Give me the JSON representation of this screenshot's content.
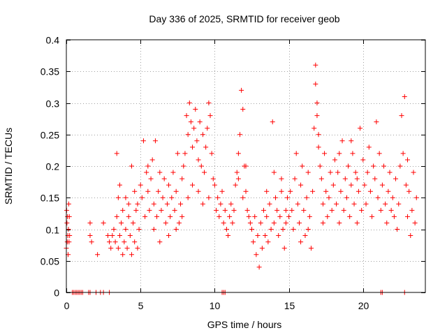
{
  "chart_data": {
    "type": "scatter",
    "title": "Day 336 of 2025, SRMTID for receiver geob",
    "xlabel": "GPS time / hours",
    "ylabel": "SRMTID / TECUs",
    "xlim": [
      0,
      24.2
    ],
    "ylim": [
      0,
      0.4
    ],
    "xticks": [
      0,
      5,
      10,
      15,
      20
    ],
    "xtick_labels": [
      "0",
      "5",
      "10",
      "15",
      "20"
    ],
    "yticks": [
      0,
      0.05,
      0.1,
      0.15,
      0.2,
      0.25,
      0.3,
      0.35,
      0.4
    ],
    "ytick_labels": [
      "0",
      "0.05",
      "0.1",
      "0.15",
      "0.2",
      "0.25",
      "0.3",
      "0.35",
      "0.4"
    ],
    "grid": true,
    "marker": "plus",
    "series": [
      {
        "name": "SRMTID",
        "color": "#ff0000",
        "points": [
          [
            0.0,
            0.07
          ],
          [
            0.02,
            0.13
          ],
          [
            0.04,
            0.11
          ],
          [
            0.06,
            0.08
          ],
          [
            0.08,
            0.12
          ],
          [
            0.1,
            0.09
          ],
          [
            0.12,
            0.06
          ],
          [
            0.14,
            0.1
          ],
          [
            0.16,
            0.14
          ],
          [
            0.18,
            0.08
          ],
          [
            0.2,
            0.12
          ],
          [
            0.22,
            0.09
          ],
          [
            0.4,
            0
          ],
          [
            0.5,
            0
          ],
          [
            0.6,
            0
          ],
          [
            0.7,
            0
          ],
          [
            0.8,
            0
          ],
          [
            0.9,
            0
          ],
          [
            1.0,
            0
          ],
          [
            1.1,
            0
          ],
          [
            1.5,
            0
          ],
          [
            1.6,
            0
          ],
          [
            2.0,
            0
          ],
          [
            2.3,
            0
          ],
          [
            2.5,
            0
          ],
          [
            2.9,
            0
          ],
          [
            1.6,
            0.09
          ],
          [
            1.6,
            0.11
          ],
          [
            1.7,
            0.08
          ],
          [
            2.1,
            0.06
          ],
          [
            2.5,
            0.11
          ],
          [
            2.8,
            0.09
          ],
          [
            2.9,
            0.08
          ],
          [
            3.0,
            0.07
          ],
          [
            3.1,
            0.09
          ],
          [
            3.2,
            0.1
          ],
          [
            3.3,
            0.08
          ],
          [
            3.4,
            0.12
          ],
          [
            3.5,
            0.07
          ],
          [
            3.6,
            0.09
          ],
          [
            3.7,
            0.11
          ],
          [
            3.8,
            0.06
          ],
          [
            3.9,
            0.08
          ],
          [
            4.0,
            0.1
          ],
          [
            4.1,
            0.07
          ],
          [
            4.2,
            0.12
          ],
          [
            4.3,
            0.09
          ],
          [
            4.4,
            0.06
          ],
          [
            4.5,
            0.11
          ],
          [
            4.6,
            0.08
          ],
          [
            4.7,
            0.13
          ],
          [
            4.8,
            0.07
          ],
          [
            4.9,
            0.1
          ],
          [
            3.4,
            0.22
          ],
          [
            3.5,
            0.15
          ],
          [
            3.6,
            0.17
          ],
          [
            3.8,
            0.13
          ],
          [
            4.0,
            0.15
          ],
          [
            4.2,
            0.14
          ],
          [
            4.4,
            0.2
          ],
          [
            4.6,
            0.16
          ],
          [
            4.8,
            0.14
          ],
          [
            5.0,
            0.17
          ],
          [
            5.1,
            0.15
          ],
          [
            5.2,
            0.24
          ],
          [
            5.3,
            0.12
          ],
          [
            5.4,
            0.19
          ],
          [
            5.5,
            0.16
          ],
          [
            5.6,
            0.13
          ],
          [
            5.7,
            0.18
          ],
          [
            5.8,
            0.21
          ],
          [
            5.9,
            0.14
          ],
          [
            6.0,
            0.24
          ],
          [
            6.1,
            0.12
          ],
          [
            6.2,
            0.16
          ],
          [
            6.3,
            0.19
          ],
          [
            6.4,
            0.13
          ],
          [
            6.5,
            0.15
          ],
          [
            6.6,
            0.18
          ],
          [
            6.7,
            0.11
          ],
          [
            6.8,
            0.14
          ],
          [
            6.9,
            0.17
          ],
          [
            7.0,
            0.12
          ],
          [
            7.1,
            0.15
          ],
          [
            7.2,
            0.19
          ],
          [
            7.3,
            0.13
          ],
          [
            7.4,
            0.16
          ],
          [
            7.5,
            0.22
          ],
          [
            7.6,
            0.11
          ],
          [
            7.7,
            0.14
          ],
          [
            7.8,
            0.18
          ],
          [
            7.9,
            0.2
          ],
          [
            5.5,
            0.2
          ],
          [
            5.9,
            0.1
          ],
          [
            6.3,
            0.08
          ],
          [
            6.9,
            0.09
          ],
          [
            7.4,
            0.1
          ],
          [
            7.8,
            0.12
          ],
          [
            8.0,
            0.22
          ],
          [
            8.1,
            0.28
          ],
          [
            8.2,
            0.25
          ],
          [
            8.3,
            0.3
          ],
          [
            8.4,
            0.27
          ],
          [
            8.5,
            0.23
          ],
          [
            8.6,
            0.26
          ],
          [
            8.7,
            0.29
          ],
          [
            8.8,
            0.24
          ],
          [
            8.9,
            0.21
          ],
          [
            9.0,
            0.27
          ],
          [
            9.1,
            0.2
          ],
          [
            9.2,
            0.25
          ],
          [
            9.3,
            0.19
          ],
          [
            9.4,
            0.23
          ],
          [
            9.5,
            0.26
          ],
          [
            9.6,
            0.3
          ],
          [
            9.7,
            0.28
          ],
          [
            9.8,
            0.22
          ],
          [
            9.9,
            0.18
          ],
          [
            8.2,
            0.15
          ],
          [
            8.5,
            0.17
          ],
          [
            8.9,
            0.16
          ],
          [
            9.2,
            0.14
          ],
          [
            9.6,
            0.15
          ],
          [
            10.0,
            0.17
          ],
          [
            10.1,
            0.13
          ],
          [
            10.2,
            0.15
          ],
          [
            10.3,
            0.12
          ],
          [
            10.4,
            0.14
          ],
          [
            10.5,
            0.16
          ],
          [
            10.6,
            0.11
          ],
          [
            10.7,
            0.13
          ],
          [
            10.8,
            0.1
          ],
          [
            10.9,
            0.09
          ],
          [
            11.0,
            0.12
          ],
          [
            11.1,
            0.14
          ],
          [
            11.2,
            0.11
          ],
          [
            11.3,
            0.13
          ],
          [
            11.4,
            0.17
          ],
          [
            11.5,
            0.19
          ],
          [
            11.6,
            0.22
          ],
          [
            11.7,
            0.25
          ],
          [
            11.8,
            0.32
          ],
          [
            11.9,
            0.29
          ],
          [
            12.0,
            0.2
          ],
          [
            12.1,
            0.16
          ],
          [
            12.2,
            0.13
          ],
          [
            12.3,
            0.12
          ],
          [
            12.4,
            0.11
          ],
          [
            10.5,
            0
          ],
          [
            10.6,
            0
          ],
          [
            10.7,
            0
          ],
          [
            11.6,
            0.18
          ],
          [
            11.9,
            0.15
          ],
          [
            12.1,
            0.2
          ],
          [
            12.5,
            0.1
          ],
          [
            12.6,
            0.08
          ],
          [
            12.7,
            0.12
          ],
          [
            12.8,
            0.06
          ],
          [
            12.9,
            0.09
          ],
          [
            13.0,
            0.04
          ],
          [
            13.1,
            0.11
          ],
          [
            13.2,
            0.07
          ],
          [
            13.3,
            0.13
          ],
          [
            13.4,
            0.09
          ],
          [
            13.5,
            0.12
          ],
          [
            13.6,
            0.08
          ],
          [
            13.7,
            0.14
          ],
          [
            13.8,
            0.1
          ],
          [
            13.9,
            0.27
          ],
          [
            14.0,
            0.11
          ],
          [
            14.1,
            0.15
          ],
          [
            14.2,
            0.13
          ],
          [
            14.3,
            0.09
          ],
          [
            14.4,
            0.12
          ],
          [
            14.5,
            0.16
          ],
          [
            14.6,
            0.1
          ],
          [
            14.7,
            0.07
          ],
          [
            14.8,
            0.13
          ],
          [
            14.9,
            0.15
          ],
          [
            13.5,
            0.16
          ],
          [
            14.0,
            0.19
          ],
          [
            14.5,
            0.18
          ],
          [
            14.8,
            0.11
          ],
          [
            15.0,
            0.12
          ],
          [
            15.1,
            0.16
          ],
          [
            15.2,
            0.13
          ],
          [
            15.3,
            0.1
          ],
          [
            15.4,
            0.18
          ],
          [
            15.5,
            0.22
          ],
          [
            15.6,
            0.14
          ],
          [
            15.7,
            0.11
          ],
          [
            15.8,
            0.17
          ],
          [
            15.9,
            0.2
          ],
          [
            16.0,
            0.13
          ],
          [
            16.1,
            0.09
          ],
          [
            16.2,
            0.15
          ],
          [
            16.3,
            0.19
          ],
          [
            16.4,
            0.12
          ],
          [
            16.5,
            0.07
          ],
          [
            16.6,
            0.16
          ],
          [
            16.7,
            0.26
          ],
          [
            16.8,
            0.36
          ],
          [
            16.9,
            0.3
          ],
          [
            17.0,
            0.25
          ],
          [
            17.1,
            0.2
          ],
          [
            17.2,
            0.18
          ],
          [
            17.3,
            0.14
          ],
          [
            17.4,
            0.22
          ],
          [
            17.5,
            0.16
          ],
          [
            17.6,
            0.12
          ],
          [
            17.7,
            0.15
          ],
          [
            17.8,
            0.19
          ],
          [
            17.9,
            0.13
          ],
          [
            16.8,
            0.33
          ],
          [
            16.9,
            0.28
          ],
          [
            17.0,
            0.23
          ],
          [
            15.8,
            0.08
          ],
          [
            16.3,
            0.1
          ],
          [
            17.3,
            0.11
          ],
          [
            18.0,
            0.17
          ],
          [
            18.1,
            0.21
          ],
          [
            18.2,
            0.14
          ],
          [
            18.3,
            0.19
          ],
          [
            18.4,
            0.11
          ],
          [
            18.5,
            0.16
          ],
          [
            18.6,
            0.24
          ],
          [
            18.7,
            0.13
          ],
          [
            18.8,
            0.18
          ],
          [
            18.9,
            0.15
          ],
          [
            19.0,
            0.2
          ],
          [
            19.1,
            0.12
          ],
          [
            19.2,
            0.17
          ],
          [
            19.3,
            0.22
          ],
          [
            19.4,
            0.14
          ],
          [
            19.5,
            0.19
          ],
          [
            19.6,
            0.11
          ],
          [
            19.7,
            0.16
          ],
          [
            19.8,
            0.26
          ],
          [
            19.9,
            0.13
          ],
          [
            18.4,
            0.22
          ],
          [
            19.2,
            0.24
          ],
          [
            19.6,
            0.18
          ],
          [
            20.0,
            0.21
          ],
          [
            20.1,
            0.17
          ],
          [
            20.2,
            0.14
          ],
          [
            20.3,
            0.19
          ],
          [
            20.4,
            0.23
          ],
          [
            20.5,
            0.16
          ],
          [
            20.6,
            0.12
          ],
          [
            20.7,
            0.2
          ],
          [
            20.8,
            0.18
          ],
          [
            20.9,
            0.27
          ],
          [
            21.0,
            0.15
          ],
          [
            21.1,
            0.22
          ],
          [
            21.2,
            0.13
          ],
          [
            21.3,
            0.17
          ],
          [
            21.4,
            0.2
          ],
          [
            21.5,
            0.14
          ],
          [
            21.6,
            0.11
          ],
          [
            21.7,
            0.16
          ],
          [
            21.8,
            0.19
          ],
          [
            21.9,
            0.13
          ],
          [
            21.2,
            0
          ],
          [
            21.3,
            0
          ],
          [
            22.0,
            0.15
          ],
          [
            22.1,
            0.12
          ],
          [
            22.2,
            0.18
          ],
          [
            22.3,
            0.1
          ],
          [
            22.4,
            0.14
          ],
          [
            22.5,
            0.2
          ],
          [
            22.6,
            0.28
          ],
          [
            22.7,
            0.22
          ],
          [
            22.8,
            0.31
          ],
          [
            22.9,
            0.17
          ],
          [
            23.0,
            0.12
          ],
          [
            23.1,
            0.16
          ],
          [
            23.2,
            0.09
          ],
          [
            23.3,
            0.13
          ],
          [
            23.4,
            0.19
          ],
          [
            23.5,
            0.11
          ],
          [
            23.6,
            0.15
          ],
          [
            22.8,
            0
          ],
          [
            23.0,
            0.21
          ]
        ]
      }
    ]
  }
}
